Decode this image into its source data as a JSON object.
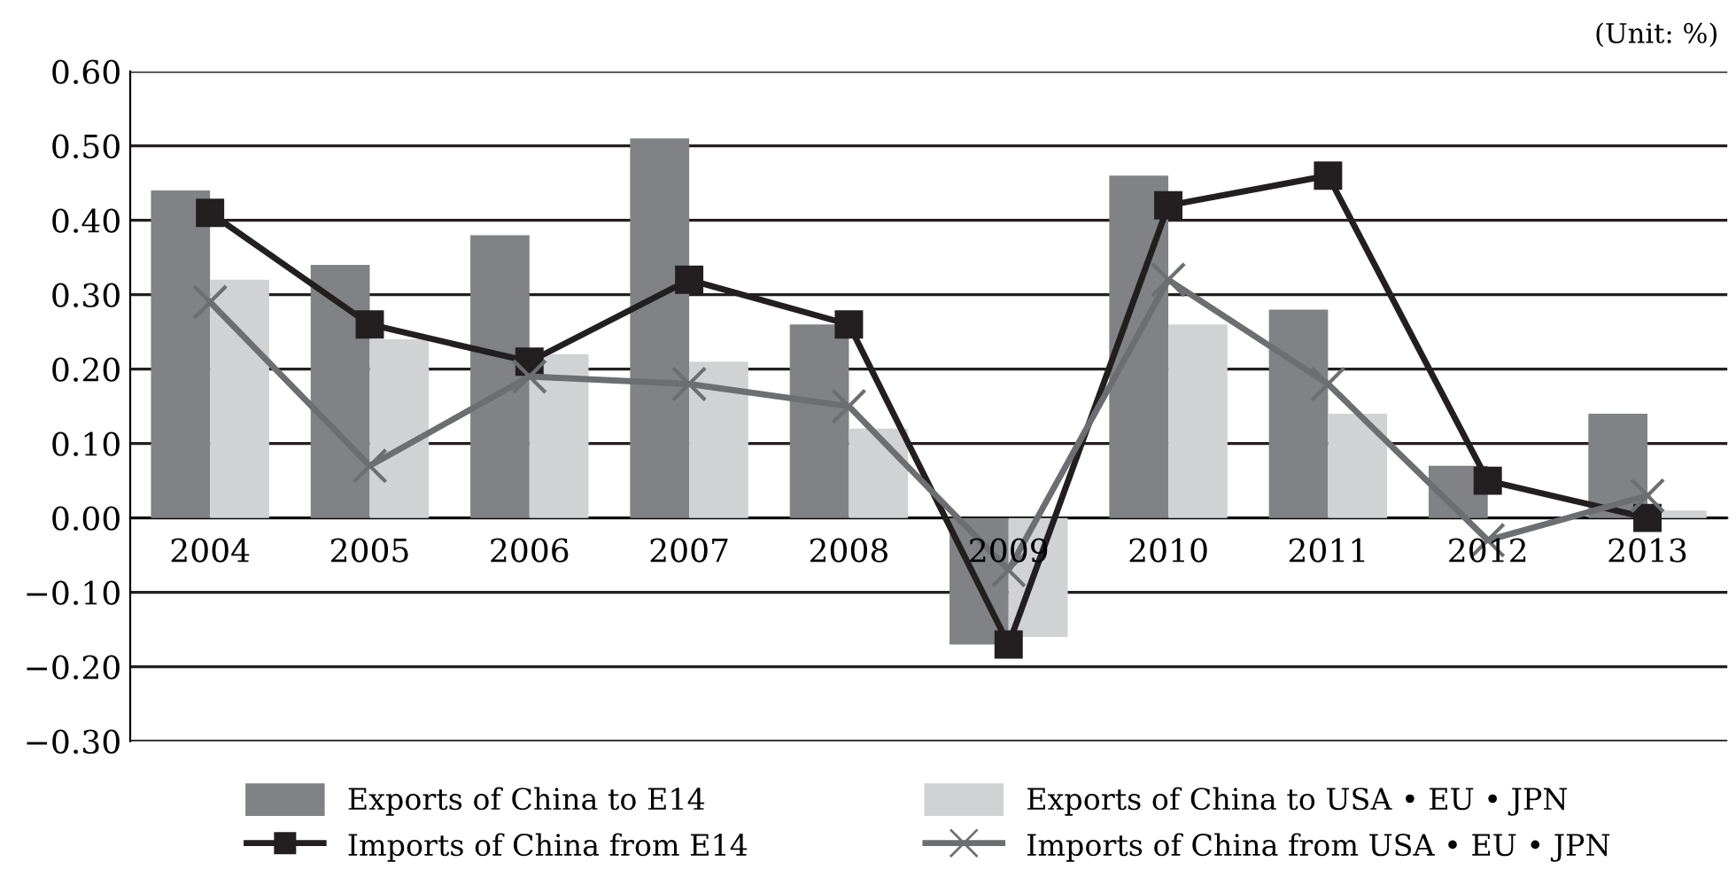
{
  "chart_data": {
    "type": "bar",
    "categories": [
      "2004",
      "2005",
      "2006",
      "2007",
      "2008",
      "2009",
      "2010",
      "2011",
      "2012",
      "2013"
    ],
    "series": [
      {
        "name": "Exports of China to E14",
        "color": "#808285",
        "values": [
          0.44,
          0.34,
          0.38,
          0.51,
          0.26,
          -0.17,
          0.46,
          0.28,
          0.07,
          0.14
        ]
      },
      {
        "name": "Exports of China to USA • EU • JPN",
        "color": "#d1d2d4",
        "values": [
          0.32,
          0.24,
          0.22,
          0.21,
          0.12,
          -0.16,
          0.26,
          0.14,
          0.0,
          0.01
        ]
      },
      {
        "name": "Imports of China from E14",
        "type": "line",
        "color": "#231f20",
        "marker": "square",
        "values": [
          0.41,
          0.26,
          0.21,
          0.32,
          0.26,
          -0.17,
          0.42,
          0.46,
          0.05,
          0.0
        ]
      },
      {
        "name": "Imports of China from USA • EU • JPN",
        "type": "line",
        "color": "#6d6e71",
        "marker": "cross",
        "values": [
          0.29,
          0.07,
          0.19,
          0.18,
          0.15,
          -0.07,
          0.32,
          0.18,
          -0.03,
          0.03
        ]
      }
    ],
    "ylim": [
      -0.3,
      0.6
    ],
    "yticks": [
      {
        "value": -0.3,
        "label": "−0.30"
      },
      {
        "value": -0.2,
        "label": "−0.20"
      },
      {
        "value": -0.1,
        "label": "−0.10"
      },
      {
        "value": 0.0,
        "label": "0.00"
      },
      {
        "value": 0.1,
        "label": "0.10"
      },
      {
        "value": 0.2,
        "label": "0.20"
      },
      {
        "value": 0.3,
        "label": "0.30"
      },
      {
        "value": 0.4,
        "label": "0.40"
      },
      {
        "value": 0.5,
        "label": "0.50"
      },
      {
        "value": 0.6,
        "label": "0.60"
      }
    ],
    "grid": "y",
    "legend": "bottom",
    "line_style": "solid",
    "annotations": [
      "(Unit: %)"
    ]
  }
}
